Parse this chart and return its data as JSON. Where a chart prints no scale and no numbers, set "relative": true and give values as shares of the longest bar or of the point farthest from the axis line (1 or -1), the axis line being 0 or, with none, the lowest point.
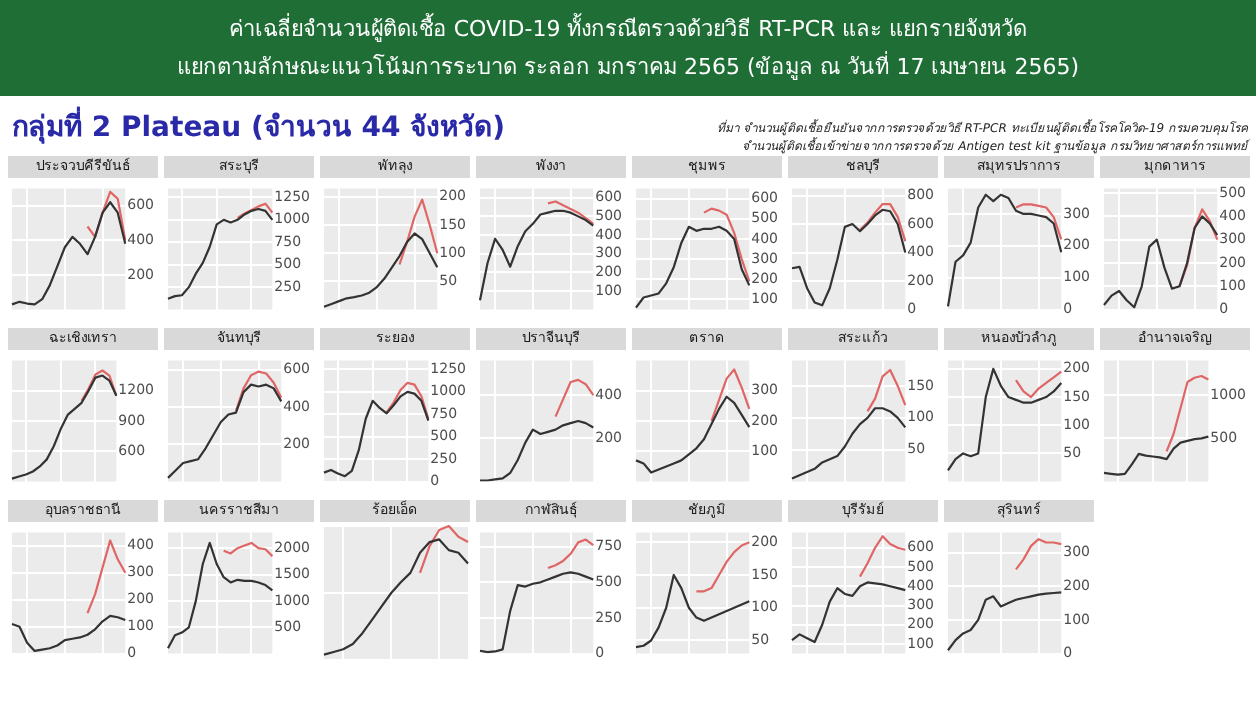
{
  "chart_data": [
    {
      "type": "other",
      "title": "ค่าเฉลี่ยจำนวนผู้ติดเชื้อ COVID-19 ทั้งกรณีตรวจด้วยวิธี RT-PCR และ แยกรายจังหวัด",
      "subtitle": "แยกตามลักษณะแนวโน้มการระบาด ระลอก มกราคม 2565 (ข้อมูล ณ วันที่ 17 เมษายน 2565)",
      "annotations": [
        "กลุ่มที่ 2 Plateau (จำนวน 44 จังหวัด)",
        "ที่มา จำนวนผู้ติดเชื้อยืนยันจากการตรวจด้วยวิธี RT-PCR ทะเบียนผู้ติดเชื้อโรคโควิด-19 กรมควบคุมโรค",
        "จำนวนผู้ติดเชื้อเข้าข่ายจากการตรวจด้วย Antigen test kit ฐานข้อมูล กรมวิทยาศาสตร์การแพทย์"
      ]
    },
    {
      "type": "line",
      "title": "ประจวบคีรีขันธ์",
      "categories": [
        null,
        null,
        null,
        null,
        null,
        null,
        null,
        null,
        null,
        null,
        null,
        null,
        null,
        null,
        null,
        null
      ],
      "ylim": [
        0,
        700
      ],
      "yticks": [
        200,
        400,
        600
      ],
      "tick_labels": "y",
      "grid": true,
      "legend": false,
      "marker": "none",
      "series": [
        {
          "color": "#333333",
          "values": [
            30,
            45,
            35,
            30,
            60,
            140,
            250,
            360,
            420,
            380,
            320,
            420,
            560,
            620,
            560,
            380
          ]
        },
        {
          "color": "#e06666",
          "values": [
            null,
            null,
            null,
            null,
            null,
            null,
            null,
            null,
            null,
            null,
            480,
            420,
            560,
            680,
            640,
            400
          ]
        }
      ]
    },
    {
      "type": "line",
      "title": "สระบุรี",
      "categories": [
        null,
        null,
        null,
        null,
        null,
        null,
        null,
        null,
        null,
        null,
        null,
        null,
        null,
        null,
        null,
        null
      ],
      "ylim": [
        0,
        1350
      ],
      "yticks": [
        250,
        500,
        750,
        1000,
        1250
      ],
      "tick_labels": "y",
      "grid": true,
      "legend": false,
      "marker": "none",
      "series": [
        {
          "color": "#333333",
          "values": [
            120,
            150,
            160,
            250,
            400,
            520,
            700,
            950,
            1000,
            970,
            1000,
            1060,
            1100,
            1120,
            1100,
            1000
          ]
        },
        {
          "color": "#e06666",
          "values": [
            null,
            null,
            null,
            null,
            null,
            null,
            null,
            null,
            null,
            null,
            1020,
            1070,
            1110,
            1150,
            1180,
            1080
          ]
        }
      ]
    },
    {
      "type": "line",
      "title": "พัทลุง",
      "categories": [
        null,
        null,
        null,
        null,
        null,
        null,
        null,
        null,
        null,
        null,
        null,
        null,
        null,
        null,
        null,
        null
      ],
      "ylim": [
        0,
        215
      ],
      "yticks": [
        50,
        100,
        150,
        200
      ],
      "tick_labels": "y",
      "grid": true,
      "legend": false,
      "marker": "none",
      "series": [
        {
          "color": "#333333",
          "values": [
            5,
            10,
            15,
            20,
            22,
            25,
            30,
            40,
            55,
            75,
            95,
            120,
            135,
            125,
            100,
            75
          ]
        },
        {
          "color": "#e06666",
          "values": [
            null,
            null,
            null,
            null,
            null,
            null,
            null,
            null,
            null,
            null,
            80,
            120,
            165,
            195,
            150,
            100
          ]
        }
      ]
    },
    {
      "type": "line",
      "title": "พังงา",
      "categories": [
        null,
        null,
        null,
        null,
        null,
        null,
        null,
        null,
        null,
        null,
        null,
        null,
        null,
        null,
        null,
        null
      ],
      "ylim": [
        0,
        650
      ],
      "yticks": [
        100,
        200,
        300,
        400,
        500,
        600
      ],
      "tick_labels": "y",
      "grid": true,
      "legend": false,
      "marker": "none",
      "series": [
        {
          "color": "#333333",
          "values": [
            50,
            250,
            380,
            320,
            230,
            340,
            420,
            460,
            510,
            520,
            530,
            530,
            520,
            500,
            480,
            450
          ]
        },
        {
          "color": "#e06666",
          "values": [
            null,
            null,
            null,
            null,
            null,
            null,
            null,
            null,
            null,
            570,
            580,
            560,
            540,
            520,
            490,
            460
          ]
        }
      ]
    },
    {
      "type": "line",
      "title": "ชุมพร",
      "categories": [
        null,
        null,
        null,
        null,
        null,
        null,
        null,
        null,
        null,
        null,
        null,
        null,
        null,
        null,
        null,
        null
      ],
      "ylim": [
        50,
        650
      ],
      "yticks": [
        100,
        200,
        300,
        400,
        500,
        600
      ],
      "tick_labels": "y",
      "grid": true,
      "legend": false,
      "marker": "none",
      "series": [
        {
          "color": "#333333",
          "values": [
            60,
            110,
            120,
            130,
            180,
            260,
            380,
            460,
            440,
            450,
            450,
            460,
            440,
            400,
            250,
            170
          ]
        },
        {
          "color": "#e06666",
          "values": [
            null,
            null,
            null,
            null,
            null,
            null,
            null,
            null,
            null,
            530,
            550,
            540,
            520,
            430,
            300,
            190
          ]
        }
      ]
    },
    {
      "type": "line",
      "title": "ชลบุรี",
      "categories": [
        null,
        null,
        null,
        null,
        null,
        null,
        null,
        null,
        null,
        null,
        null,
        null,
        null,
        null,
        null,
        null
      ],
      "ylim": [
        0,
        850
      ],
      "yticks": [
        0,
        200,
        400,
        600,
        800
      ],
      "tick_labels": "y",
      "grid": true,
      "legend": false,
      "marker": "none",
      "series": [
        {
          "color": "#333333",
          "values": [
            290,
            300,
            150,
            50,
            30,
            150,
            350,
            580,
            600,
            550,
            600,
            660,
            700,
            690,
            600,
            400
          ]
        },
        {
          "color": "#e06666",
          "values": [
            null,
            null,
            null,
            null,
            null,
            null,
            null,
            null,
            null,
            560,
            610,
            680,
            740,
            740,
            650,
            480
          ]
        }
      ]
    },
    {
      "type": "line",
      "title": "สมุทรปราการ",
      "categories": [
        null,
        null,
        null,
        null,
        null,
        null,
        null,
        null,
        null,
        null,
        null,
        null,
        null,
        null,
        null,
        null
      ],
      "ylim": [
        0,
        380
      ],
      "yticks": [
        0,
        100,
        200,
        300
      ],
      "tick_labels": "y",
      "grid": true,
      "legend": false,
      "marker": "none",
      "series": [
        {
          "color": "#333333",
          "values": [
            10,
            150,
            170,
            210,
            320,
            360,
            340,
            360,
            350,
            310,
            300,
            300,
            295,
            290,
            270,
            180
          ]
        },
        {
          "color": "#e06666",
          "values": [
            null,
            null,
            null,
            null,
            null,
            null,
            null,
            null,
            null,
            320,
            330,
            330,
            325,
            320,
            290,
            220
          ]
        }
      ]
    },
    {
      "type": "line",
      "title": "มุกดาหาร",
      "categories": [
        null,
        null,
        null,
        null,
        null,
        null,
        null,
        null,
        null,
        null,
        null,
        null,
        null,
        null,
        null,
        null
      ],
      "ylim": [
        0,
        520
      ],
      "yticks": [
        0,
        100,
        200,
        300,
        400,
        500
      ],
      "tick_labels": "y",
      "grid": true,
      "legend": false,
      "marker": "none",
      "series": [
        {
          "color": "#333333",
          "values": [
            20,
            60,
            80,
            40,
            10,
            100,
            270,
            300,
            180,
            90,
            100,
            200,
            350,
            400,
            370,
            320
          ]
        },
        {
          "color": "#e06666",
          "values": [
            null,
            null,
            null,
            null,
            null,
            null,
            null,
            null,
            null,
            null,
            100,
            190,
            350,
            430,
            380,
            300
          ]
        }
      ]
    },
    {
      "type": "line",
      "title": "ฉะเชิงเทรา",
      "categories": [
        null,
        null,
        null,
        null,
        null,
        null,
        null,
        null,
        null,
        null,
        null,
        null,
        null,
        null,
        null,
        null
      ],
      "ylim": [
        300,
        1500
      ],
      "yticks": [
        600,
        900,
        1200
      ],
      "tick_labels": "y",
      "grid": true,
      "legend": false,
      "marker": "none",
      "series": [
        {
          "color": "#333333",
          "values": [
            330,
            350,
            370,
            400,
            450,
            520,
            650,
            820,
            960,
            1020,
            1080,
            1200,
            1330,
            1350,
            1300,
            1150
          ]
        },
        {
          "color": "#e06666",
          "values": [
            null,
            null,
            null,
            null,
            null,
            null,
            null,
            null,
            null,
            null,
            1100,
            1220,
            1360,
            1400,
            1350,
            1150
          ]
        }
      ]
    },
    {
      "type": "line",
      "title": "จันทบุรี",
      "categories": [
        null,
        null,
        null,
        null,
        null,
        null,
        null,
        null,
        null,
        null,
        null,
        null,
        null,
        null,
        null,
        null
      ],
      "ylim": [
        0,
        650
      ],
      "yticks": [
        200,
        400,
        600
      ],
      "tick_labels": "y",
      "grid": true,
      "legend": false,
      "marker": "none",
      "series": [
        {
          "color": "#333333",
          "values": [
            20,
            60,
            100,
            110,
            120,
            180,
            250,
            320,
            360,
            370,
            480,
            520,
            510,
            520,
            500,
            430
          ]
        },
        {
          "color": "#e06666",
          "values": [
            null,
            null,
            null,
            null,
            null,
            null,
            null,
            null,
            null,
            380,
            500,
            570,
            590,
            580,
            530,
            450
          ]
        }
      ]
    },
    {
      "type": "line",
      "title": "ระยอง",
      "categories": [
        null,
        null,
        null,
        null,
        null,
        null,
        null,
        null,
        null,
        null,
        null,
        null,
        null,
        null,
        null,
        null
      ],
      "ylim": [
        0,
        1350
      ],
      "yticks": [
        0,
        250,
        500,
        750,
        1000,
        1250
      ],
      "tick_labels": "y",
      "grid": true,
      "legend": false,
      "marker": "none",
      "series": [
        {
          "color": "#333333",
          "values": [
            100,
            130,
            90,
            60,
            120,
            350,
            700,
            900,
            820,
            760,
            850,
            950,
            1000,
            980,
            900,
            680
          ]
        },
        {
          "color": "#e06666",
          "values": [
            null,
            null,
            null,
            null,
            null,
            null,
            null,
            null,
            null,
            770,
            880,
            1020,
            1100,
            1080,
            950,
            700
          ]
        }
      ]
    },
    {
      "type": "line",
      "title": "ปราจีนบุรี",
      "categories": [
        null,
        null,
        null,
        null,
        null,
        null,
        null,
        null,
        null,
        null,
        null,
        null,
        null,
        null,
        null,
        null
      ],
      "ylim": [
        0,
        560
      ],
      "yticks": [
        200,
        400
      ],
      "tick_labels": "y",
      "grid": true,
      "legend": false,
      "marker": "none",
      "series": [
        {
          "color": "#333333",
          "values": [
            5,
            5,
            10,
            15,
            40,
            100,
            180,
            240,
            220,
            230,
            240,
            260,
            270,
            280,
            270,
            250
          ]
        },
        {
          "color": "#e06666",
          "values": [
            null,
            null,
            null,
            null,
            null,
            null,
            null,
            null,
            null,
            null,
            300,
            380,
            460,
            470,
            450,
            400
          ]
        }
      ]
    },
    {
      "type": "line",
      "title": "ตราด",
      "categories": [
        null,
        null,
        null,
        null,
        null,
        null,
        null,
        null,
        null,
        null,
        null,
        null,
        null,
        null,
        null,
        null
      ],
      "ylim": [
        0,
        400
      ],
      "yticks": [
        100,
        200,
        300
      ],
      "tick_labels": "y",
      "grid": true,
      "legend": false,
      "marker": "none",
      "series": [
        {
          "color": "#333333",
          "values": [
            70,
            60,
            30,
            40,
            50,
            60,
            70,
            90,
            110,
            140,
            190,
            240,
            280,
            260,
            220,
            180
          ]
        },
        {
          "color": "#e06666",
          "values": [
            null,
            null,
            null,
            null,
            null,
            null,
            null,
            null,
            null,
            null,
            200,
            270,
            340,
            370,
            310,
            240
          ]
        }
      ]
    },
    {
      "type": "line",
      "title": "สระแก้ว",
      "categories": [
        null,
        null,
        null,
        null,
        null,
        null,
        null,
        null,
        null,
        null,
        null,
        null,
        null,
        null,
        null,
        null
      ],
      "ylim": [
        0,
        190
      ],
      "yticks": [
        50,
        100,
        150
      ],
      "tick_labels": "y",
      "grid": true,
      "legend": false,
      "marker": "none",
      "series": [
        {
          "color": "#333333",
          "values": [
            5,
            10,
            15,
            20,
            30,
            35,
            40,
            55,
            75,
            90,
            100,
            115,
            115,
            110,
            100,
            85
          ]
        },
        {
          "color": "#e06666",
          "values": [
            null,
            null,
            null,
            null,
            null,
            null,
            null,
            null,
            null,
            null,
            110,
            130,
            165,
            175,
            150,
            120
          ]
        }
      ]
    },
    {
      "type": "line",
      "title": "หนองบัวลำภู",
      "categories": [
        null,
        null,
        null,
        null,
        null,
        null,
        null,
        null,
        null,
        null,
        null,
        null,
        null,
        null,
        null,
        null
      ],
      "ylim": [
        0,
        215
      ],
      "yticks": [
        50,
        100,
        150,
        200
      ],
      "tick_labels": "y",
      "grid": true,
      "legend": false,
      "marker": "none",
      "series": [
        {
          "color": "#333333",
          "values": [
            20,
            40,
            50,
            45,
            50,
            150,
            200,
            170,
            150,
            145,
            140,
            140,
            145,
            150,
            160,
            175
          ]
        },
        {
          "color": "#e06666",
          "values": [
            null,
            null,
            null,
            null,
            null,
            null,
            null,
            null,
            null,
            180,
            160,
            150,
            165,
            175,
            185,
            195
          ]
        }
      ]
    },
    {
      "type": "line",
      "title": "อำนาจเจริญ",
      "categories": [
        null,
        null,
        null,
        null,
        null,
        null,
        null,
        null,
        null,
        null,
        null,
        null,
        null,
        null,
        null,
        null
      ],
      "ylim": [
        0,
        1400
      ],
      "yticks": [
        500,
        1000
      ],
      "tick_labels": "y",
      "grid": true,
      "legend": false,
      "marker": "none",
      "series": [
        {
          "color": "#333333",
          "values": [
            100,
            90,
            80,
            90,
            200,
            320,
            300,
            290,
            280,
            260,
            380,
            450,
            470,
            490,
            500,
            520
          ]
        },
        {
          "color": "#e06666",
          "values": [
            null,
            null,
            null,
            null,
            null,
            null,
            null,
            null,
            null,
            350,
            550,
            850,
            1150,
            1200,
            1220,
            1180
          ]
        }
      ]
    },
    {
      "type": "line",
      "title": "อุบลราชธานี",
      "categories": [
        null,
        null,
        null,
        null,
        null,
        null,
        null,
        null,
        null,
        null,
        null,
        null,
        null,
        null,
        null,
        null
      ],
      "ylim": [
        0,
        450
      ],
      "yticks": [
        0,
        100,
        200,
        300,
        400
      ],
      "tick_labels": "y",
      "grid": true,
      "legend": false,
      "marker": "none",
      "series": [
        {
          "color": "#333333",
          "values": [
            110,
            100,
            40,
            10,
            15,
            20,
            30,
            50,
            55,
            60,
            70,
            90,
            120,
            140,
            135,
            125
          ]
        },
        {
          "color": "#e06666",
          "values": [
            null,
            null,
            null,
            null,
            null,
            null,
            null,
            null,
            null,
            null,
            150,
            220,
            320,
            420,
            350,
            300
          ]
        }
      ]
    },
    {
      "type": "line",
      "title": "นครราชสีมา",
      "categories": [
        null,
        null,
        null,
        null,
        null,
        null,
        null,
        null,
        null,
        null,
        null,
        null,
        null,
        null,
        null,
        null
      ],
      "ylim": [
        0,
        2300
      ],
      "yticks": [
        500,
        1000,
        1500,
        2000
      ],
      "tick_labels": "y",
      "grid": true,
      "legend": false,
      "marker": "none",
      "series": [
        {
          "color": "#333333",
          "values": [
            100,
            350,
            400,
            500,
            1000,
            1700,
            2100,
            1700,
            1450,
            1350,
            1400,
            1380,
            1380,
            1350,
            1300,
            1200
          ]
        },
        {
          "color": "#e06666",
          "values": [
            null,
            null,
            null,
            null,
            null,
            null,
            null,
            null,
            1950,
            1900,
            2000,
            2050,
            2100,
            2000,
            1980,
            1850
          ]
        }
      ]
    },
    {
      "type": "line",
      "title": "ร้อยเอ็ด",
      "categories": [
        null,
        null,
        null,
        null,
        null,
        null,
        null,
        null,
        null,
        null,
        null,
        null,
        null,
        null,
        null,
        null
      ],
      "relative": true,
      "tick_labels": false,
      "grid": true,
      "legend": false,
      "marker": "none",
      "series": [
        {
          "color": "#333333",
          "values": [
            0.04,
            0.06,
            0.08,
            0.12,
            0.2,
            0.3,
            0.4,
            0.5,
            0.58,
            0.65,
            0.8,
            0.88,
            0.9,
            0.82,
            0.8,
            0.72
          ]
        },
        {
          "color": "#e06666",
          "values": [
            null,
            null,
            null,
            null,
            null,
            null,
            null,
            null,
            null,
            null,
            0.65,
            0.85,
            0.97,
            1,
            0.92,
            0.88
          ]
        }
      ]
    },
    {
      "type": "line",
      "title": "กาฬสินธุ์",
      "categories": [
        null,
        null,
        null,
        null,
        null,
        null,
        null,
        null,
        null,
        null,
        null,
        null,
        null,
        null,
        null,
        null
      ],
      "ylim": [
        0,
        850
      ],
      "yticks": [
        0,
        250,
        500,
        750
      ],
      "tick_labels": "y",
      "grid": true,
      "legend": false,
      "marker": "none",
      "series": [
        {
          "color": "#333333",
          "values": [
            20,
            10,
            15,
            30,
            300,
            480,
            470,
            490,
            500,
            520,
            540,
            560,
            570,
            560,
            540,
            520
          ]
        },
        {
          "color": "#e06666",
          "values": [
            null,
            null,
            null,
            null,
            null,
            null,
            null,
            null,
            null,
            600,
            620,
            650,
            700,
            780,
            800,
            760
          ]
        }
      ]
    },
    {
      "type": "line",
      "title": "ชัยภูมิ",
      "categories": [
        null,
        null,
        null,
        null,
        null,
        null,
        null,
        null,
        null,
        null,
        null,
        null,
        null,
        null,
        null,
        null
      ],
      "ylim": [
        30,
        215
      ],
      "yticks": [
        50,
        100,
        150,
        200
      ],
      "tick_labels": "y",
      "grid": true,
      "legend": false,
      "marker": "none",
      "series": [
        {
          "color": "#333333",
          "values": [
            40,
            42,
            50,
            70,
            100,
            150,
            130,
            100,
            85,
            80,
            85,
            90,
            95,
            100,
            105,
            110
          ]
        },
        {
          "color": "#e06666",
          "values": [
            null,
            null,
            null,
            null,
            null,
            null,
            null,
            null,
            125,
            125,
            130,
            150,
            170,
            185,
            195,
            200
          ]
        }
      ]
    },
    {
      "type": "line",
      "title": "บุรีรัมย์",
      "categories": [
        null,
        null,
        null,
        null,
        null,
        null,
        null,
        null,
        null,
        null,
        null,
        null,
        null,
        null,
        null,
        null
      ],
      "ylim": [
        50,
        680
      ],
      "yticks": [
        100,
        200,
        300,
        400,
        500,
        600
      ],
      "tick_labels": "y",
      "grid": true,
      "legend": false,
      "marker": "none",
      "series": [
        {
          "color": "#333333",
          "values": [
            120,
            150,
            130,
            110,
            200,
            320,
            390,
            360,
            350,
            400,
            420,
            415,
            410,
            400,
            390,
            380
          ]
        },
        {
          "color": "#e06666",
          "values": [
            null,
            null,
            null,
            null,
            null,
            null,
            null,
            null,
            null,
            450,
            520,
            600,
            660,
            620,
            600,
            590
          ]
        }
      ]
    },
    {
      "type": "line",
      "title": "สุรินทร์",
      "categories": [
        null,
        null,
        null,
        null,
        null,
        null,
        null,
        null,
        null,
        null,
        null,
        null,
        null,
        null,
        null,
        null
      ],
      "ylim": [
        0,
        360
      ],
      "yticks": [
        0,
        100,
        200,
        300
      ],
      "tick_labels": "y",
      "grid": true,
      "legend": false,
      "marker": "none",
      "series": [
        {
          "color": "#333333",
          "values": [
            10,
            40,
            60,
            70,
            100,
            160,
            170,
            140,
            150,
            160,
            165,
            170,
            175,
            178,
            180,
            182
          ]
        },
        {
          "color": "#e06666",
          "values": [
            null,
            null,
            null,
            null,
            null,
            null,
            null,
            null,
            null,
            250,
            280,
            320,
            340,
            330,
            330,
            325
          ]
        }
      ]
    }
  ]
}
